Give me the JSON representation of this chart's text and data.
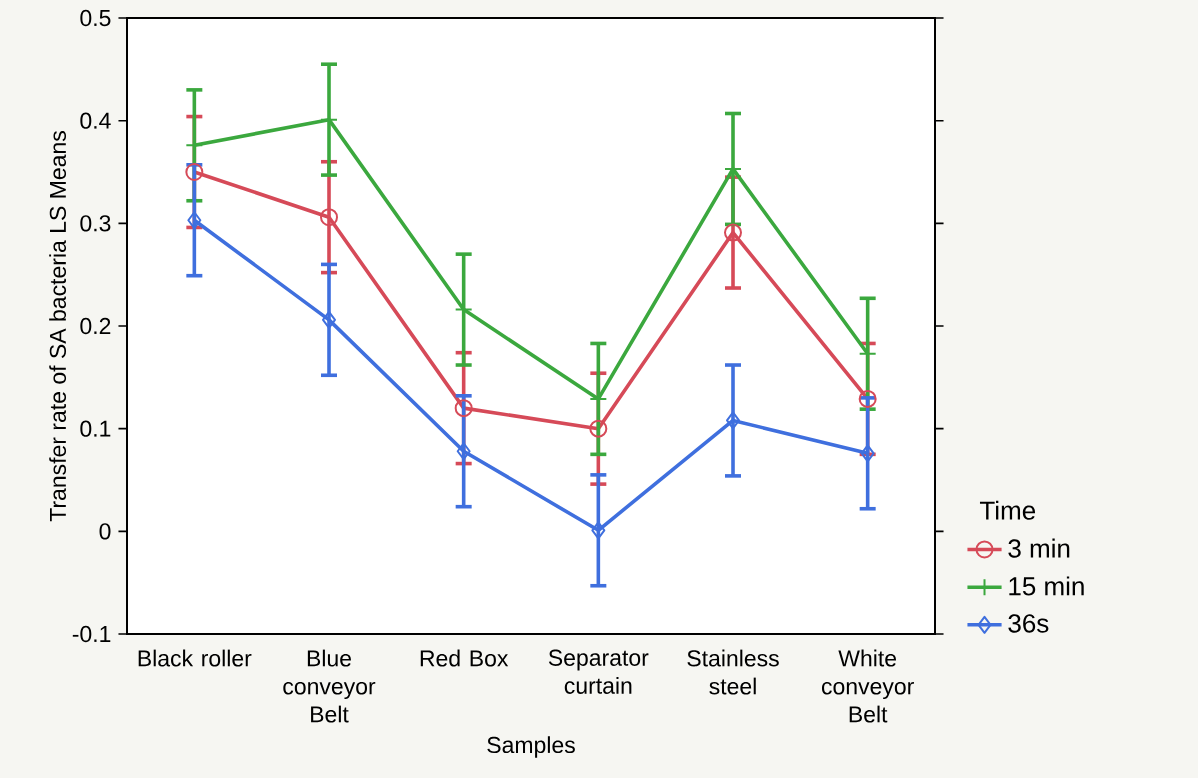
{
  "chart_data": {
    "type": "line",
    "xlabel": "Samples",
    "ylabel": "Transfer rate of SA bacteria LS Means",
    "legend_title": "Time",
    "legend": "right",
    "categories": [
      "Black roller",
      "Blue conveyor Belt",
      "Red Box",
      "Separator curtain",
      "Stainless steel",
      "White conveyor Belt"
    ],
    "ylim": [
      -0.1,
      0.5
    ],
    "yticks": [
      -0.1,
      0,
      0.1,
      0.2,
      0.3,
      0.4,
      0.5
    ],
    "grid": false,
    "series": [
      {
        "name": "3 min",
        "color": "#d64a58",
        "marker": "circle",
        "values": [
          0.35,
          0.306,
          0.12,
          0.1,
          0.291,
          0.129
        ],
        "errors": [
          0.054,
          0.054,
          0.054,
          0.054,
          0.054,
          0.054
        ]
      },
      {
        "name": "15 min",
        "color": "#3ba83e",
        "marker": "cross",
        "values": [
          0.376,
          0.401,
          0.216,
          0.129,
          0.353,
          0.173
        ],
        "errors": [
          0.054,
          0.054,
          0.054,
          0.054,
          0.054,
          0.054
        ]
      },
      {
        "name": "36s",
        "color": "#3f6fde",
        "marker": "diamond",
        "values": [
          0.303,
          0.206,
          0.078,
          0.001,
          0.108,
          0.076
        ],
        "errors": [
          0.054,
          0.054,
          0.054,
          0.054,
          0.054,
          0.054
        ]
      }
    ]
  }
}
